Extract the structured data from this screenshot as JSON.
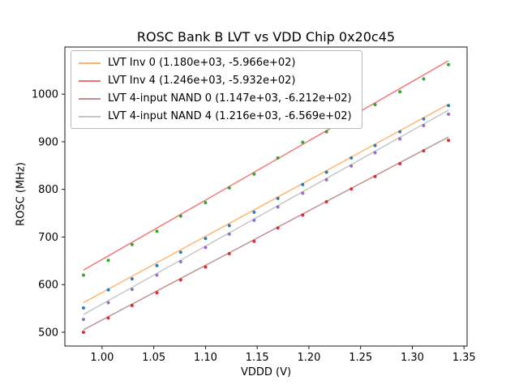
{
  "title": "ROSC Bank B LVT vs VDD Chip 0x20c45",
  "chart_data": {
    "type": "scatter",
    "title": "ROSC Bank B LVT vs VDD Chip 0x20c45",
    "xlabel": "VDDD (V)",
    "ylabel": "ROSC (MHz)",
    "xlim": [
      0.964,
      1.353
    ],
    "ylim": [
      471,
      1099
    ],
    "grid": false,
    "legend_position": "upper left",
    "x_ticks": [
      1.0,
      1.05,
      1.1,
      1.15,
      1.2,
      1.25,
      1.3,
      1.35
    ],
    "x_tick_labels": [
      "1.00",
      "1.05",
      "1.10",
      "1.15",
      "1.20",
      "1.25",
      "1.30",
      "1.35"
    ],
    "y_ticks": [
      500,
      600,
      700,
      800,
      900,
      1000
    ],
    "y_tick_labels": [
      "500",
      "600",
      "700",
      "800",
      "900",
      "1000"
    ],
    "x": [
      0.982,
      1.006,
      1.029,
      1.053,
      1.076,
      1.1,
      1.123,
      1.147,
      1.17,
      1.194,
      1.217,
      1.241,
      1.264,
      1.288,
      1.311,
      1.335
    ],
    "series": [
      {
        "name": "LVT Inv 0",
        "legend": "LVT Inv 0 (1.180e+03, -5.966e+02)",
        "fit_slope": 1180.0,
        "fit_intercept": -596.6,
        "line_color": "#ffb266",
        "point_color": "#1f77b4",
        "y": [
          551,
          589,
          612,
          640,
          668,
          697,
          724,
          752,
          781,
          810,
          836,
          866,
          892,
          921,
          948,
          976
        ]
      },
      {
        "name": "LVT Inv 4",
        "legend": "LVT Inv 4 (1.246e+03, -5.932e+02)",
        "fit_slope": 1246.0,
        "fit_intercept": -593.2,
        "line_color": "#ee7272",
        "point_color": "#2ca02c",
        "y": [
          620,
          651,
          684,
          712,
          744,
          772,
          803,
          832,
          866,
          899,
          921,
          950,
          978,
          1005,
          1032,
          1062
        ]
      },
      {
        "name": "LVT 4-input NAND 0",
        "legend": "LVT 4-input NAND 0 (1.147e+03, -6.212e+02)",
        "fit_slope": 1147.0,
        "fit_intercept": -621.2,
        "line_color": "#bc8f8f",
        "point_color": "#d62728",
        "y": [
          500,
          530,
          556,
          583,
          610,
          637,
          665,
          691,
          719,
          746,
          774,
          801,
          827,
          854,
          881,
          903
        ]
      },
      {
        "name": "LVT 4-input NAND 4",
        "legend": "LVT 4-input NAND 4 (1.216e+03, -6.569e+02)",
        "fit_slope": 1216.0,
        "fit_intercept": -656.9,
        "line_color": "#c4c4c4",
        "point_color": "#9467bd",
        "y": [
          527,
          562,
          590,
          620,
          648,
          678,
          706,
          735,
          763,
          792,
          820,
          849,
          877,
          906,
          934,
          958
        ]
      }
    ]
  }
}
